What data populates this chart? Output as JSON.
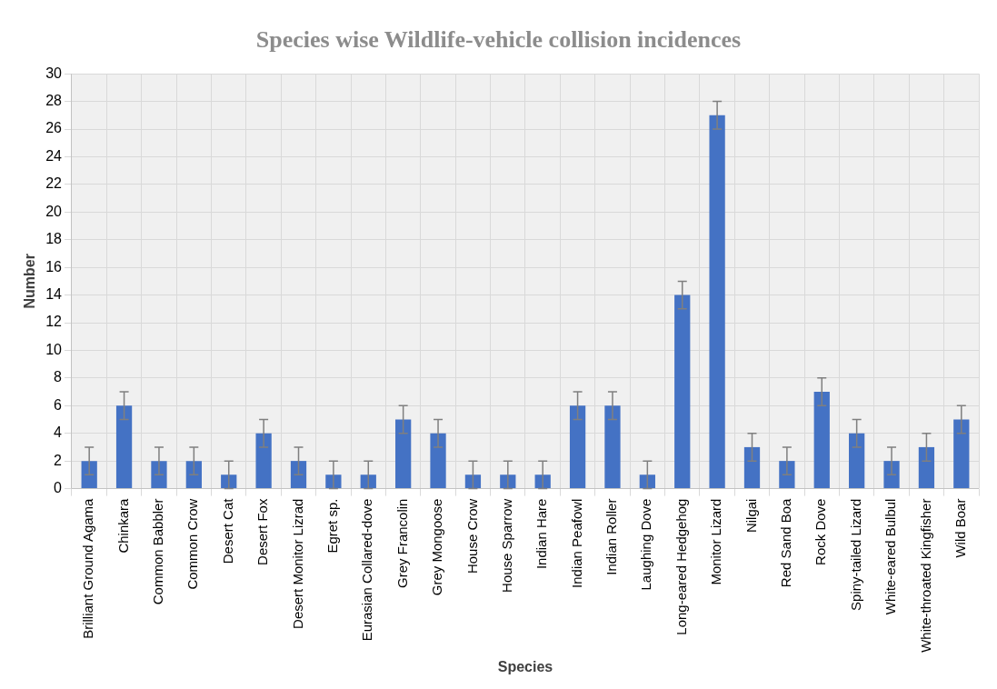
{
  "chart_data": {
    "type": "bar",
    "title": "Species wise Wildlife-vehicle collision incidences",
    "xlabel": "Species",
    "ylabel": "Number",
    "categories": [
      "Brilliant Ground Agama",
      "Chinkara",
      "Common Babbler",
      "Common Crow",
      "Desert Cat",
      "Desert Fox",
      "Desert Monitor Lizrad",
      "Egret sp.",
      "Eurasian Collared-dove",
      "Grey Francolin",
      "Grey Mongoose",
      "House Crow",
      "House Sparrow",
      "Indian Hare",
      "Indian Peafowl",
      "Indian Roller",
      "Laughing Dove",
      "Long-eared Hedgehog",
      "Monitor Lizard",
      "Nilgai",
      "Red Sand Boa",
      "Rock Dove",
      "Spiny-tailed Lizard",
      "White-eared Bulbul",
      "White-throated Kingfisher",
      "Wild Boar"
    ],
    "values": [
      2,
      6,
      2,
      2,
      1,
      4,
      2,
      1,
      1,
      5,
      4,
      1,
      1,
      1,
      6,
      6,
      1,
      14,
      27,
      3,
      2,
      7,
      4,
      2,
      3,
      5
    ],
    "errors": [
      1,
      1,
      1,
      1,
      1,
      1,
      1,
      1,
      1,
      1,
      1,
      1,
      1,
      1,
      1,
      1,
      1,
      1,
      1,
      1,
      1,
      1,
      1,
      1,
      1,
      1
    ],
    "color": "#4472c4",
    "ylim": [
      0,
      30
    ],
    "yticks": [
      0,
      2,
      4,
      6,
      8,
      10,
      12,
      14,
      16,
      18,
      20,
      22,
      24,
      26,
      28,
      30
    ],
    "grid": true
  }
}
